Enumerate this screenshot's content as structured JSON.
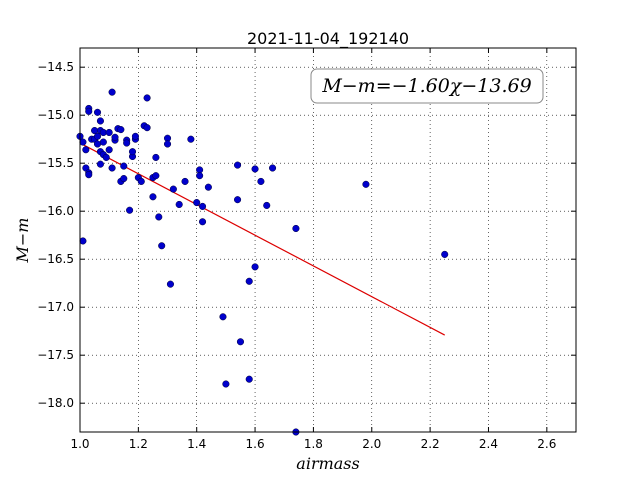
{
  "chart_data": {
    "type": "scatter",
    "title": "2021-11-04_192140",
    "xlabel": "airmass",
    "ylabel": "M−m",
    "annotation": "M−m=−1.60χ−13.69",
    "xlim": [
      1.0,
      2.7
    ],
    "ylim": [
      -18.3,
      -14.3
    ],
    "ylim_inverted": true,
    "grid": true,
    "xticks": [
      "1.0",
      "1.2",
      "1.4",
      "1.6",
      "1.8",
      "2.0",
      "2.2",
      "2.4",
      "2.6"
    ],
    "yticks": [
      "−14.5",
      "−15.0",
      "−15.5",
      "−16.0",
      "−16.5",
      "−17.0",
      "−17.5",
      "−18.0"
    ],
    "xtick_values": [
      1.0,
      1.2,
      1.4,
      1.6,
      1.8,
      2.0,
      2.2,
      2.4,
      2.6
    ],
    "ytick_values": [
      -14.5,
      -15.0,
      -15.5,
      -16.0,
      -16.5,
      -17.0,
      -17.5,
      -18.0
    ],
    "point_color": "#0000cc",
    "fit_color": "#dd0000",
    "points": [
      [
        1.0,
        -15.22
      ],
      [
        1.01,
        -16.31
      ],
      [
        1.01,
        -15.28
      ],
      [
        1.02,
        -15.55
      ],
      [
        1.02,
        -15.36
      ],
      [
        1.03,
        -15.6
      ],
      [
        1.03,
        -15.62
      ],
      [
        1.03,
        -14.93
      ],
      [
        1.03,
        -14.96
      ],
      [
        1.04,
        -15.25
      ],
      [
        1.05,
        -15.16
      ],
      [
        1.05,
        -15.25
      ],
      [
        1.06,
        -14.97
      ],
      [
        1.06,
        -15.22
      ],
      [
        1.06,
        -15.3
      ],
      [
        1.07,
        -15.38
      ],
      [
        1.07,
        -15.51
      ],
      [
        1.07,
        -15.06
      ],
      [
        1.07,
        -15.16
      ],
      [
        1.08,
        -15.18
      ],
      [
        1.08,
        -15.28
      ],
      [
        1.08,
        -15.41
      ],
      [
        1.09,
        -15.44
      ],
      [
        1.1,
        -15.36
      ],
      [
        1.1,
        -15.18
      ],
      [
        1.11,
        -14.76
      ],
      [
        1.11,
        -15.55
      ],
      [
        1.12,
        -15.26
      ],
      [
        1.12,
        -15.23
      ],
      [
        1.13,
        -15.14
      ],
      [
        1.14,
        -15.15
      ],
      [
        1.14,
        -15.69
      ],
      [
        1.15,
        -15.66
      ],
      [
        1.15,
        -15.53
      ],
      [
        1.16,
        -15.26
      ],
      [
        1.16,
        -15.29
      ],
      [
        1.17,
        -15.99
      ],
      [
        1.18,
        -15.43
      ],
      [
        1.18,
        -15.38
      ],
      [
        1.19,
        -15.25
      ],
      [
        1.19,
        -15.22
      ],
      [
        1.2,
        -15.65
      ],
      [
        1.21,
        -15.69
      ],
      [
        1.22,
        -15.11
      ],
      [
        1.23,
        -14.82
      ],
      [
        1.23,
        -15.13
      ],
      [
        1.25,
        -15.85
      ],
      [
        1.25,
        -15.65
      ],
      [
        1.26,
        -15.63
      ],
      [
        1.26,
        -15.44
      ],
      [
        1.27,
        -16.06
      ],
      [
        1.28,
        -16.36
      ],
      [
        1.3,
        -15.24
      ],
      [
        1.3,
        -15.3
      ],
      [
        1.31,
        -16.76
      ],
      [
        1.32,
        -15.77
      ],
      [
        1.34,
        -15.93
      ],
      [
        1.36,
        -15.69
      ],
      [
        1.38,
        -15.25
      ],
      [
        1.4,
        -15.91
      ],
      [
        1.41,
        -15.57
      ],
      [
        1.41,
        -15.63
      ],
      [
        1.42,
        -15.95
      ],
      [
        1.42,
        -16.11
      ],
      [
        1.44,
        -15.75
      ],
      [
        1.49,
        -17.1
      ],
      [
        1.5,
        -17.8
      ],
      [
        1.54,
        -15.52
      ],
      [
        1.54,
        -15.88
      ],
      [
        1.55,
        -17.36
      ],
      [
        1.58,
        -16.73
      ],
      [
        1.58,
        -17.75
      ],
      [
        1.6,
        -16.58
      ],
      [
        1.6,
        -15.56
      ],
      [
        1.62,
        -15.69
      ],
      [
        1.64,
        -15.94
      ],
      [
        1.66,
        -15.55
      ],
      [
        1.74,
        -16.18
      ],
      [
        1.74,
        -18.3
      ],
      [
        1.98,
        -15.72
      ],
      [
        2.25,
        -16.45
      ]
    ],
    "fit_line": {
      "slope": -1.6,
      "intercept": -13.69,
      "x_range": [
        1.0,
        2.25
      ]
    }
  }
}
